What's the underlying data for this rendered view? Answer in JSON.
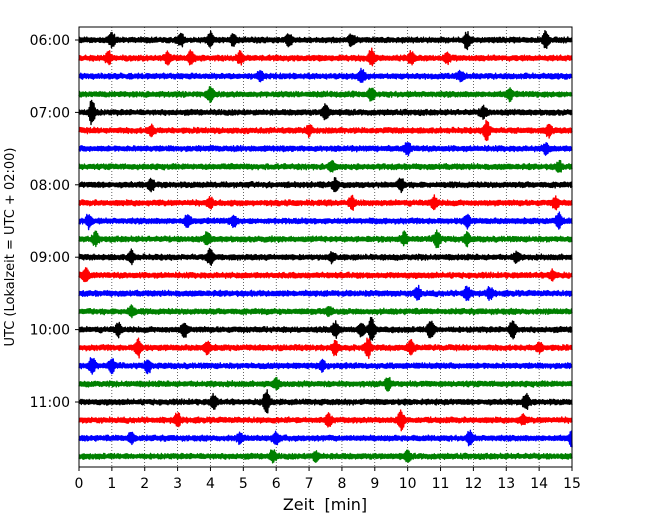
{
  "chart_data": {
    "type": "line",
    "subtype": "helicorder",
    "xlabel": "Zeit  [min]",
    "ylabel": "UTC (Lokalzeit = UTC + 02:00)",
    "xlim": [
      0,
      15
    ],
    "x_ticks": [
      0,
      1,
      2,
      3,
      4,
      5,
      6,
      7,
      8,
      9,
      10,
      11,
      12,
      13,
      14,
      15
    ],
    "y_tick_labels": [
      "06:00",
      "07:00",
      "08:00",
      "09:00",
      "10:00",
      "11:00"
    ],
    "grid": "vertical dotted at each minute",
    "trace_colors": [
      "#000000",
      "#ff0000",
      "#0000ff",
      "#008000"
    ],
    "rows": [
      {
        "start": "06:00",
        "color": "#000000",
        "bursts": [
          {
            "t": 1.0,
            "a": 0.5
          },
          {
            "t": 3.1,
            "a": 0.45
          },
          {
            "t": 4.0,
            "a": 0.5
          },
          {
            "t": 4.7,
            "a": 0.4
          },
          {
            "t": 6.4,
            "a": 0.45
          },
          {
            "t": 8.3,
            "a": 0.4
          },
          {
            "t": 11.8,
            "a": 0.6
          },
          {
            "t": 14.2,
            "a": 0.7
          }
        ]
      },
      {
        "start": "06:15",
        "color": "#ff0000",
        "bursts": [
          {
            "t": 0.9,
            "a": 0.45
          },
          {
            "t": 2.7,
            "a": 0.45
          },
          {
            "t": 3.4,
            "a": 0.6
          },
          {
            "t": 4.9,
            "a": 0.4
          },
          {
            "t": 8.9,
            "a": 0.6
          },
          {
            "t": 10.1,
            "a": 0.45
          },
          {
            "t": 11.2,
            "a": 0.4
          }
        ]
      },
      {
        "start": "06:30",
        "color": "#0000ff",
        "bursts": [
          {
            "t": 5.5,
            "a": 0.35
          },
          {
            "t": 8.6,
            "a": 0.55
          },
          {
            "t": 11.6,
            "a": 0.35
          }
        ]
      },
      {
        "start": "06:45",
        "color": "#008000",
        "bursts": [
          {
            "t": 4.0,
            "a": 0.6
          },
          {
            "t": 8.9,
            "a": 0.5
          },
          {
            "t": 13.1,
            "a": 0.45
          }
        ]
      },
      {
        "start": "07:00",
        "color": "#000000",
        "bursts": [
          {
            "t": 0.4,
            "a": 1.0
          },
          {
            "t": 7.5,
            "a": 0.6
          },
          {
            "t": 12.3,
            "a": 0.45
          }
        ]
      },
      {
        "start": "07:15",
        "color": "#ff0000",
        "bursts": [
          {
            "t": 2.2,
            "a": 0.35
          },
          {
            "t": 7.0,
            "a": 0.35
          },
          {
            "t": 12.4,
            "a": 0.8
          },
          {
            "t": 14.3,
            "a": 0.45
          }
        ]
      },
      {
        "start": "07:30",
        "color": "#0000ff",
        "bursts": [
          {
            "t": 10.0,
            "a": 0.45
          },
          {
            "t": 14.2,
            "a": 0.4
          }
        ]
      },
      {
        "start": "07:45",
        "color": "#008000",
        "bursts": [
          {
            "t": 7.7,
            "a": 0.35
          },
          {
            "t": 14.6,
            "a": 0.35
          }
        ]
      },
      {
        "start": "08:00",
        "color": "#000000",
        "bursts": [
          {
            "t": 2.2,
            "a": 0.45
          },
          {
            "t": 7.8,
            "a": 0.4
          },
          {
            "t": 9.8,
            "a": 0.45
          }
        ]
      },
      {
        "start": "08:15",
        "color": "#ff0000",
        "bursts": [
          {
            "t": 4.0,
            "a": 0.35
          },
          {
            "t": 8.3,
            "a": 0.5
          },
          {
            "t": 10.8,
            "a": 0.5
          },
          {
            "t": 14.5,
            "a": 0.4
          }
        ]
      },
      {
        "start": "08:30",
        "color": "#0000ff",
        "bursts": [
          {
            "t": 0.3,
            "a": 0.5
          },
          {
            "t": 3.3,
            "a": 0.45
          },
          {
            "t": 4.7,
            "a": 0.4
          },
          {
            "t": 11.8,
            "a": 0.5
          },
          {
            "t": 14.6,
            "a": 0.55
          }
        ]
      },
      {
        "start": "08:45",
        "color": "#008000",
        "bursts": [
          {
            "t": 0.5,
            "a": 0.45
          },
          {
            "t": 3.9,
            "a": 0.45
          },
          {
            "t": 9.9,
            "a": 0.45
          },
          {
            "t": 10.9,
            "a": 0.65
          },
          {
            "t": 11.8,
            "a": 0.45
          }
        ]
      },
      {
        "start": "09:00",
        "color": "#000000",
        "bursts": [
          {
            "t": 1.6,
            "a": 0.45
          },
          {
            "t": 4.0,
            "a": 0.6
          },
          {
            "t": 7.7,
            "a": 0.35
          },
          {
            "t": 13.3,
            "a": 0.35
          }
        ]
      },
      {
        "start": "09:15",
        "color": "#ff0000",
        "bursts": [
          {
            "t": 0.2,
            "a": 0.55
          },
          {
            "t": 14.4,
            "a": 0.35
          }
        ]
      },
      {
        "start": "09:30",
        "color": "#0000ff",
        "bursts": [
          {
            "t": 10.3,
            "a": 0.5
          },
          {
            "t": 11.8,
            "a": 0.55
          },
          {
            "t": 12.5,
            "a": 0.45
          }
        ]
      },
      {
        "start": "09:45",
        "color": "#008000",
        "bursts": [
          {
            "t": 1.6,
            "a": 0.4
          },
          {
            "t": 7.6,
            "a": 0.35
          }
        ]
      },
      {
        "start": "10:00",
        "color": "#000000",
        "bursts": [
          {
            "t": 1.2,
            "a": 0.5
          },
          {
            "t": 3.2,
            "a": 0.55
          },
          {
            "t": 7.8,
            "a": 0.6
          },
          {
            "t": 8.6,
            "a": 0.6
          },
          {
            "t": 8.9,
            "a": 1.0
          },
          {
            "t": 10.7,
            "a": 0.8
          },
          {
            "t": 13.2,
            "a": 0.8
          }
        ]
      },
      {
        "start": "10:15",
        "color": "#ff0000",
        "bursts": [
          {
            "t": 1.8,
            "a": 0.7
          },
          {
            "t": 3.9,
            "a": 0.45
          },
          {
            "t": 7.8,
            "a": 0.6
          },
          {
            "t": 8.8,
            "a": 0.75
          },
          {
            "t": 10.1,
            "a": 0.6
          },
          {
            "t": 14.0,
            "a": 0.35
          }
        ]
      },
      {
        "start": "10:30",
        "color": "#0000ff",
        "bursts": [
          {
            "t": 0.4,
            "a": 0.6
          },
          {
            "t": 1.0,
            "a": 0.5
          },
          {
            "t": 2.1,
            "a": 0.5
          },
          {
            "t": 7.4,
            "a": 0.4
          }
        ]
      },
      {
        "start": "10:45",
        "color": "#008000",
        "bursts": [
          {
            "t": 6.0,
            "a": 0.35
          },
          {
            "t": 9.4,
            "a": 0.45
          }
        ]
      },
      {
        "start": "11:00",
        "color": "#000000",
        "bursts": [
          {
            "t": 4.1,
            "a": 0.55
          },
          {
            "t": 5.7,
            "a": 0.9
          },
          {
            "t": 13.6,
            "a": 0.6
          }
        ]
      },
      {
        "start": "11:15",
        "color": "#ff0000",
        "bursts": [
          {
            "t": 3.0,
            "a": 0.5
          },
          {
            "t": 7.6,
            "a": 0.4
          },
          {
            "t": 9.8,
            "a": 0.75
          },
          {
            "t": 13.5,
            "a": 0.35
          }
        ]
      },
      {
        "start": "11:30",
        "color": "#0000ff",
        "bursts": [
          {
            "t": 1.6,
            "a": 0.45
          },
          {
            "t": 4.9,
            "a": 0.35
          },
          {
            "t": 6.0,
            "a": 0.5
          },
          {
            "t": 11.9,
            "a": 0.55
          },
          {
            "t": 15.0,
            "a": 0.6
          }
        ]
      },
      {
        "start": "11:45",
        "color": "#008000",
        "bursts": [
          {
            "t": 5.9,
            "a": 0.45
          },
          {
            "t": 7.2,
            "a": 0.35
          },
          {
            "t": 10.0,
            "a": 0.35
          }
        ]
      }
    ]
  }
}
